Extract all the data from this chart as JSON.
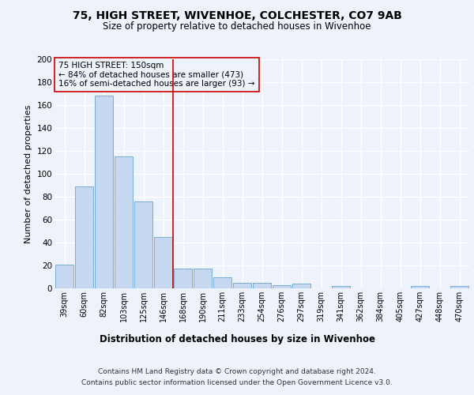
{
  "title1": "75, HIGH STREET, WIVENHOE, COLCHESTER, CO7 9AB",
  "title2": "Size of property relative to detached houses in Wivenhoe",
  "xlabel": "Distribution of detached houses by size in Wivenhoe",
  "ylabel": "Number of detached properties",
  "categories": [
    "39sqm",
    "60sqm",
    "82sqm",
    "103sqm",
    "125sqm",
    "146sqm",
    "168sqm",
    "190sqm",
    "211sqm",
    "233sqm",
    "254sqm",
    "276sqm",
    "297sqm",
    "319sqm",
    "341sqm",
    "362sqm",
    "384sqm",
    "405sqm",
    "427sqm",
    "448sqm",
    "470sqm"
  ],
  "values": [
    21,
    89,
    168,
    115,
    76,
    45,
    17,
    17,
    10,
    5,
    5,
    3,
    4,
    0,
    2,
    0,
    0,
    0,
    2,
    0,
    2
  ],
  "bar_color": "#c5d8f0",
  "bar_edge_color": "#7aadd4",
  "vline_x": 5.5,
  "vline_color": "#cc0000",
  "annotation_title": "75 HIGH STREET: 150sqm",
  "annotation_line2": "← 84% of detached houses are smaller (473)",
  "annotation_line3": "16% of semi-detached houses are larger (93) →",
  "annotation_box_color": "#cc0000",
  "ylim": [
    0,
    200
  ],
  "yticks": [
    0,
    20,
    40,
    60,
    80,
    100,
    120,
    140,
    160,
    180,
    200
  ],
  "footer1": "Contains HM Land Registry data © Crown copyright and database right 2024.",
  "footer2": "Contains public sector information licensed under the Open Government Licence v3.0.",
  "bg_color": "#eef2fa",
  "grid_color": "#ffffff"
}
